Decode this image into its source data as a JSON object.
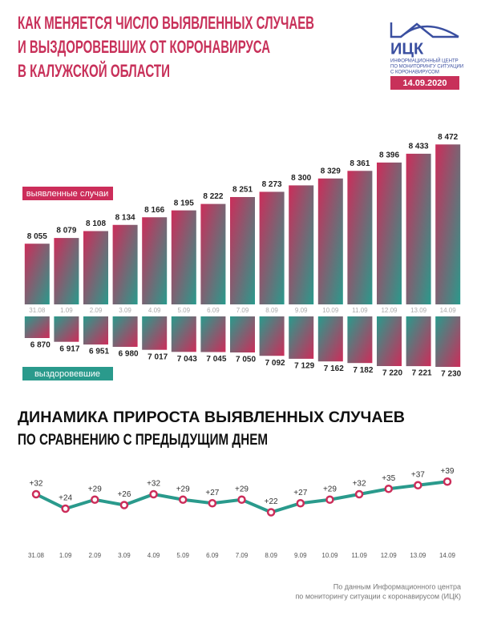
{
  "header": {
    "title": [
      "КАК МЕНЯЕТСЯ ЧИСЛО ВЫЯВЛЕННЫХ СЛУЧАЕВ",
      "И ВЫЗДОРОВЕВШИХ ОТ КОРОНАВИРУСА",
      "В КАЛУЖСКОЙ ОБЛАСТИ"
    ],
    "logo": "ИЦК",
    "logo_caption": [
      "ИНФОРМАЦИОННЫЙ ЦЕНТР",
      "ПО МОНИТОРИНГУ СИТУАЦИИ",
      "С КОРОНАВИРУСОМ"
    ],
    "date": "14.09.2020"
  },
  "chart_data": [
    {
      "type": "bar",
      "categories": [
        "31.08",
        "1.09",
        "2.09",
        "3.09",
        "4.09",
        "5.09",
        "6.09",
        "7.09",
        "8.09",
        "9.09",
        "10.09",
        "11.09",
        "12.09",
        "13.09",
        "14.09"
      ],
      "ylim": [
        7800,
        8500
      ],
      "y2lim": [
        6600,
        7300
      ],
      "series": [
        {
          "name": "выявленные случаи",
          "color": "#cc2d5a",
          "values": [
            8055,
            8079,
            8108,
            8134,
            8166,
            8195,
            8222,
            8251,
            8273,
            8300,
            8329,
            8361,
            8396,
            8433,
            8472
          ],
          "value_labels": [
            "8 055",
            "8 079",
            "8 108",
            "8 134",
            "8 166",
            "8 195",
            "8 222",
            "8 251",
            "8 273",
            "8 300",
            "8 329",
            "8 361",
            "8 396",
            "8 433",
            "8 472"
          ]
        },
        {
          "name": "выздоровевшие",
          "color": "#2a9a8c",
          "axis": "y2",
          "values": [
            6870,
            6917,
            6951,
            6980,
            7017,
            7043,
            7045,
            7050,
            7092,
            7129,
            7162,
            7182,
            7220,
            7221,
            7230
          ],
          "value_labels": [
            "6 870",
            "6 917",
            "6 951",
            "6 980",
            "7 017",
            "7 043",
            "7 045",
            "7 050",
            "7 092",
            "7 129",
            "7 162",
            "7 182",
            "7 220",
            "7 221",
            "7 230"
          ]
        }
      ]
    },
    {
      "type": "line",
      "title": [
        "ДИНАМИКА ПРИРОСТА ВЫЯВЛЕННЫХ СЛУЧАЕВ",
        "ПО СРАВНЕНИЮ С ПРЕДЫДУЩИМ ДНЕМ"
      ],
      "categories": [
        "31.08",
        "1.09",
        "2.09",
        "3.09",
        "4.09",
        "5.09",
        "6.09",
        "7.09",
        "8.09",
        "9.09",
        "10.09",
        "11.09",
        "12.09",
        "13.09",
        "14.09"
      ],
      "ylim": [
        20,
        40
      ],
      "color": "#2a9a8c",
      "marker_color": "#cc2d5a",
      "values": [
        32,
        24,
        29,
        26,
        32,
        29,
        27,
        29,
        22,
        27,
        29,
        32,
        35,
        37,
        39
      ],
      "value_labels": [
        "+32",
        "+24",
        "+29",
        "+26",
        "+32",
        "+29",
        "+27",
        "+29",
        "+22",
        "+27",
        "+29",
        "+32",
        "+35",
        "+37",
        "+39"
      ]
    }
  ],
  "footer": [
    "По данным Информационного центра",
    "по мониторингу ситуации с коронавирусом (ИЦК)"
  ]
}
